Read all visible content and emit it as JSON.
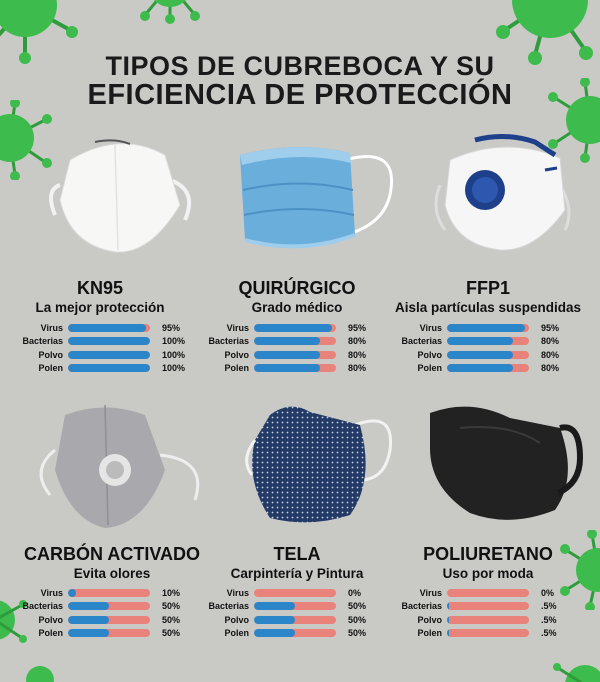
{
  "title": {
    "line1": "TIPOS DE CUBREBOCA Y SU",
    "line2": "EFICIENCIA DE PROTECCIÓN"
  },
  "colors": {
    "background": "#c9cac6",
    "virus": "#3dbb4c",
    "bar_fill": "#2b86c9",
    "bar_track": "#e8827a"
  },
  "masks": [
    {
      "name": "KN95",
      "subtitle": "La mejor protección",
      "icon": "kn95-mask-icon",
      "stats": [
        {
          "label": "Virus",
          "value": "95%",
          "level": 0.95
        },
        {
          "label": "Bacterias",
          "value": "100%",
          "level": 1.0
        },
        {
          "label": "Polvo",
          "value": "100%",
          "level": 1.0
        },
        {
          "label": "Polen",
          "value": "100%",
          "level": 1.0
        }
      ]
    },
    {
      "name": "QUIRÚRGICO",
      "subtitle": "Grado médico",
      "icon": "surgical-mask-icon",
      "stats": [
        {
          "label": "Virus",
          "value": "95%",
          "level": 0.95
        },
        {
          "label": "Bacterias",
          "value": "80%",
          "level": 0.8
        },
        {
          "label": "Polvo",
          "value": "80%",
          "level": 0.8
        },
        {
          "label": "Polen",
          "value": "80%",
          "level": 0.8
        }
      ]
    },
    {
      "name": "FFP1",
      "subtitle": "Aisla partículas suspendidas",
      "icon": "ffp1-mask-icon",
      "stats": [
        {
          "label": "Virus",
          "value": "95%",
          "level": 0.95
        },
        {
          "label": "Bacterias",
          "value": "80%",
          "level": 0.8
        },
        {
          "label": "Polvo",
          "value": "80%",
          "level": 0.8
        },
        {
          "label": "Polen",
          "value": "80%",
          "level": 0.8
        }
      ]
    },
    {
      "name": "CARBÓN ACTIVADO",
      "subtitle": "Evita olores",
      "icon": "carbon-mask-icon",
      "stats": [
        {
          "label": "Virus",
          "value": "10%",
          "level": 0.1
        },
        {
          "label": "Bacterias",
          "value": "50%",
          "level": 0.5
        },
        {
          "label": "Polvo",
          "value": "50%",
          "level": 0.5
        },
        {
          "label": "Polen",
          "value": "50%",
          "level": 0.5
        }
      ]
    },
    {
      "name": "TELA",
      "subtitle": "Carpintería y Pintura",
      "icon": "cloth-mask-icon",
      "stats": [
        {
          "label": "Virus",
          "value": "0%",
          "level": 0.0
        },
        {
          "label": "Bacterias",
          "value": "50%",
          "level": 0.5
        },
        {
          "label": "Polvo",
          "value": "50%",
          "level": 0.5
        },
        {
          "label": "Polen",
          "value": "50%",
          "level": 0.5
        }
      ]
    },
    {
      "name": "POLIURETANO",
      "subtitle": "Uso por moda",
      "icon": "polyurethane-mask-icon",
      "stats": [
        {
          "label": "Virus",
          "value": "0%",
          "level": 0.0
        },
        {
          "label": "Bacterias",
          "value": ".5%",
          "level": 0.005
        },
        {
          "label": "Polvo",
          "value": ".5%",
          "level": 0.005
        },
        {
          "label": "Polen",
          "value": ".5%",
          "level": 0.005
        }
      ]
    }
  ]
}
